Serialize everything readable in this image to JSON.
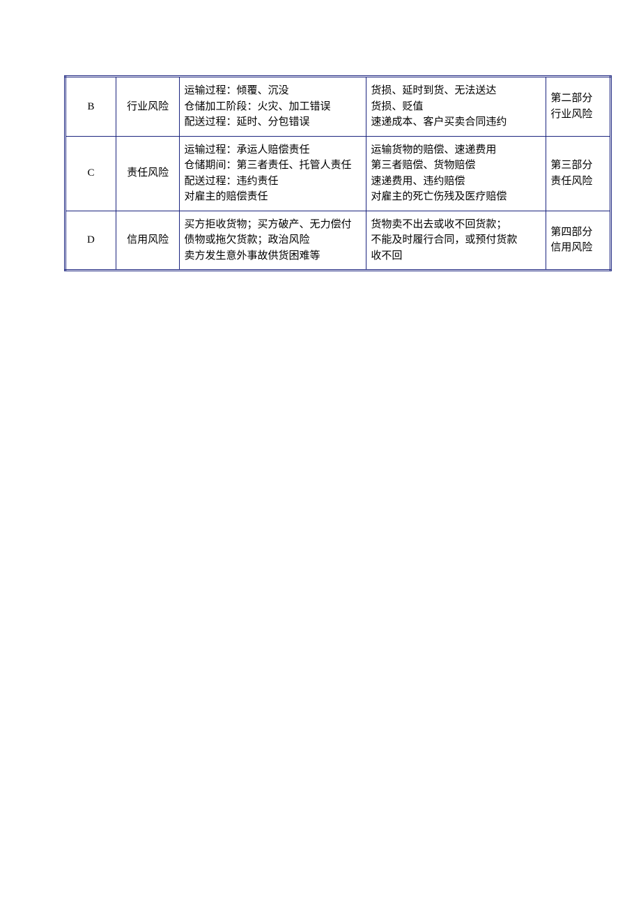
{
  "table": {
    "border_color": "#1a237e",
    "background_color": "#ffffff",
    "text_color": "#000000",
    "font_size": 15,
    "rows": [
      {
        "id": "B",
        "type": "行业风险",
        "desc1_lines": [
          "运输过程：倾覆、沉没",
          "仓储加工阶段：火灾、加工错误",
          "配送过程：延时、分包错误"
        ],
        "desc2_lines": [
          "货损、延时到货、无法送达",
          "货损、贬值",
          "速递成本、客户买卖合同违约"
        ],
        "part_lines": [
          "第二部分",
          "行业风险"
        ]
      },
      {
        "id": "C",
        "type": "责任风险",
        "desc1_lines": [
          "运输过程：承运人赔偿责任",
          "仓储期间：第三者责任、托管人责任",
          "配送过程：违约责任",
          "对雇主的赔偿责任"
        ],
        "desc2_lines": [
          "运输货物的赔偿、速递费用",
          "第三者赔偿、货物赔偿",
          "速递费用、违约赔偿",
          "对雇主的死亡伤残及医疗赔偿"
        ],
        "part_lines": [
          "第三部分",
          "责任风险"
        ]
      },
      {
        "id": "D",
        "type": "信用风险",
        "desc1_lines": [
          "买方拒收货物；买方破产、无力偿付",
          "债物或拖欠货款；政治风险",
          "卖方发生意外事故供货困难等"
        ],
        "desc2_lines": [
          "货物卖不出去或收不回货款；",
          "不能及时履行合同，或预付货款",
          "收不回"
        ],
        "part_lines": [
          "第四部分",
          "信用风险"
        ]
      }
    ]
  }
}
